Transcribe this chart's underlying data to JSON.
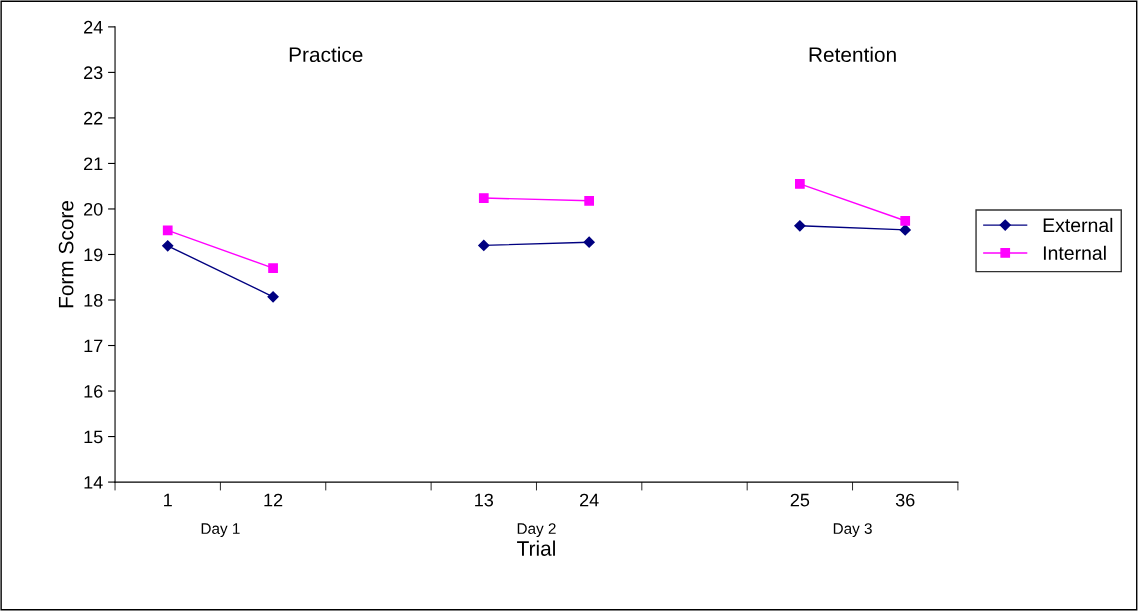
{
  "chart_data": {
    "type": "line",
    "xlabel": "Trial",
    "ylabel": "Form Score",
    "categories": [
      "1",
      "12",
      null,
      "13",
      "24",
      null,
      "25",
      "36"
    ],
    "series": [
      {
        "name": "External",
        "color": "#000080",
        "marker": "diamond",
        "values": [
          19.19,
          18.07,
          null,
          19.2,
          19.27,
          null,
          19.63,
          19.54
        ]
      },
      {
        "name": "Internal",
        "color": "#ff00ff",
        "marker": "square",
        "values": [
          19.53,
          18.7,
          null,
          20.24,
          20.18,
          null,
          20.55,
          19.74
        ]
      }
    ],
    "ylim": [
      14,
      24
    ],
    "yticks": [
      14,
      15,
      16,
      17,
      18,
      19,
      20,
      21,
      22,
      23,
      24
    ],
    "annotations": [
      "Practice",
      "Retention",
      "Day 1",
      "Day 2",
      "Day 3"
    ],
    "grid": false,
    "legend": "right",
    "line_style": "solid"
  }
}
